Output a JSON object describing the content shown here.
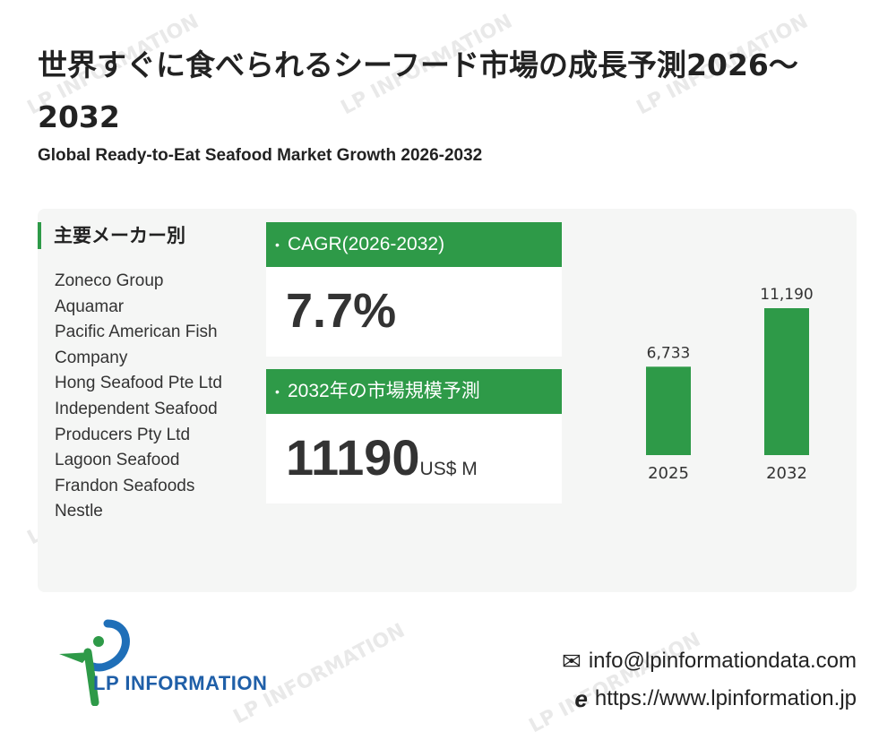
{
  "header": {
    "title_jp": "世界すぐに食べられるシーフード市場の成長予測2026～2032",
    "title_en": "Global Ready-to-Eat Seafood Market Growth 2026-2032"
  },
  "manufacturers": {
    "heading": "主要メーカー別",
    "items": [
      "Zoneco Group",
      "Aquamar",
      "Pacific American Fish Company",
      "Hong Seafood Pte Ltd",
      "Independent Seafood Producers Pty Ltd",
      "Lagoon Seafood",
      "Frandon Seafoods",
      "Nestle"
    ]
  },
  "cagr": {
    "label": "CAGR(2026-2032)",
    "value": "7.7%"
  },
  "forecast": {
    "label": "2032年の市場規模予測",
    "value": "11190",
    "unit": "US$ M"
  },
  "chart_data": {
    "type": "bar",
    "categories": [
      "2025",
      "2032"
    ],
    "values": [
      6733,
      11190
    ],
    "data_labels": [
      "6,733",
      "11,190"
    ],
    "bar_color": "#2e9a48"
  },
  "contact": {
    "email": "info@lpinformationdata.com",
    "website": "https://www.lpinformation.jp"
  },
  "brand": {
    "name": "LP INFORMATION",
    "watermark": "LP INFORMATION"
  },
  "colors": {
    "accent": "#2e9a48",
    "panel": "#f5f6f5"
  }
}
